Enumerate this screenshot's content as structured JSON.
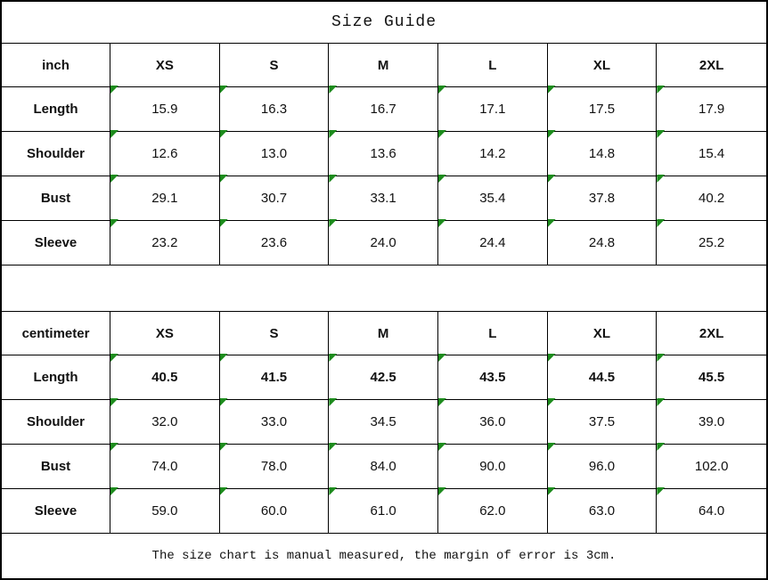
{
  "title": "Size Guide",
  "footer_note": "The size chart is manual measured, the margin of error is 3cm.",
  "tables": [
    {
      "unit_label": "inch",
      "sizes": [
        "XS",
        "S",
        "M",
        "L",
        "XL",
        "2XL"
      ],
      "rows": [
        {
          "label": "Length",
          "bold_values": false,
          "values": [
            "15.9",
            "16.3",
            "16.7",
            "17.1",
            "17.5",
            "17.9"
          ]
        },
        {
          "label": "Shoulder",
          "bold_values": false,
          "values": [
            "12.6",
            "13.0",
            "13.6",
            "14.2",
            "14.8",
            "15.4"
          ]
        },
        {
          "label": "Bust",
          "bold_values": false,
          "values": [
            "29.1",
            "30.7",
            "33.1",
            "35.4",
            "37.8",
            "40.2"
          ]
        },
        {
          "label": "Sleeve",
          "bold_values": false,
          "values": [
            "23.2",
            "23.6",
            "24.0",
            "24.4",
            "24.8",
            "25.2"
          ]
        }
      ]
    },
    {
      "unit_label": "centimeter",
      "sizes": [
        "XS",
        "S",
        "M",
        "L",
        "XL",
        "2XL"
      ],
      "rows": [
        {
          "label": "Length",
          "bold_values": true,
          "values": [
            "40.5",
            "41.5",
            "42.5",
            "43.5",
            "44.5",
            "45.5"
          ]
        },
        {
          "label": "Shoulder",
          "bold_values": false,
          "values": [
            "32.0",
            "33.0",
            "34.5",
            "36.0",
            "37.5",
            "39.0"
          ]
        },
        {
          "label": "Bust",
          "bold_values": false,
          "values": [
            "74.0",
            "78.0",
            "84.0",
            "90.0",
            "96.0",
            "102.0"
          ]
        },
        {
          "label": "Sleeve",
          "bold_values": false,
          "values": [
            "59.0",
            "60.0",
            "61.0",
            "62.0",
            "63.0",
            "64.0"
          ]
        }
      ]
    }
  ],
  "icons": {
    "cell_corner_marker": "green triangle in top-left corner of each value cell"
  },
  "colors": {
    "border": "#000000",
    "triangle_green": "#1d8c1d",
    "background": "#ffffff",
    "text": "#111111"
  }
}
